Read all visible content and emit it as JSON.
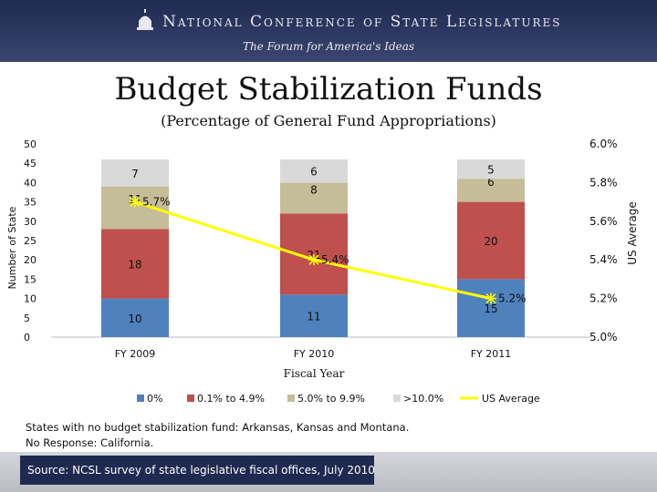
{
  "header": {
    "org": "National Conference of State Legislatures",
    "tagline": "The Forum for America's Ideas"
  },
  "notes": {
    "line1": "States with no budget stabilization fund: Arkansas, Kansas and Montana.",
    "line2": "No Response: California.",
    "source": "Source: NCSL survey of state legislative fiscal offices, July 2010"
  },
  "colors": {
    "series_0": "#4f81bd",
    "series_1": "#c0504d",
    "series_2": "#c4bd97",
    "series_3": "#d9d9d9",
    "us_average": "#ffff00"
  },
  "chart_data": {
    "type": "bar",
    "stacked": true,
    "title": "Budget Stabilization Funds",
    "subtitle": "(Percentage of General Fund Appropriations)",
    "xlabel": "Fiscal Year",
    "ylabel": "Number of State",
    "y2label": "US Average",
    "categories": [
      "FY 2009",
      "FY 2010",
      "FY 2011"
    ],
    "ylim": [
      0,
      50
    ],
    "yticks": [
      0,
      5,
      10,
      15,
      20,
      25,
      30,
      35,
      40,
      45,
      50
    ],
    "y2lim": [
      5.0,
      6.0
    ],
    "y2ticks": [
      "5.0%",
      "5.2%",
      "5.4%",
      "5.6%",
      "5.8%",
      "6.0%"
    ],
    "series": [
      {
        "name": "0%",
        "values": [
          10,
          11,
          15
        ]
      },
      {
        "name": "0.1% to 4.9%",
        "values": [
          18,
          21,
          20
        ]
      },
      {
        "name": "5.0% to 9.9%",
        "values": [
          11,
          8,
          6
        ]
      },
      {
        "name": ">10.0%",
        "values": [
          7,
          6,
          5
        ]
      }
    ],
    "line": {
      "name": "US Average",
      "values": [
        5.7,
        5.4,
        5.2
      ],
      "labels": [
        "5.7%",
        "5.4%",
        "5.2%"
      ]
    },
    "legend": "bottom"
  }
}
